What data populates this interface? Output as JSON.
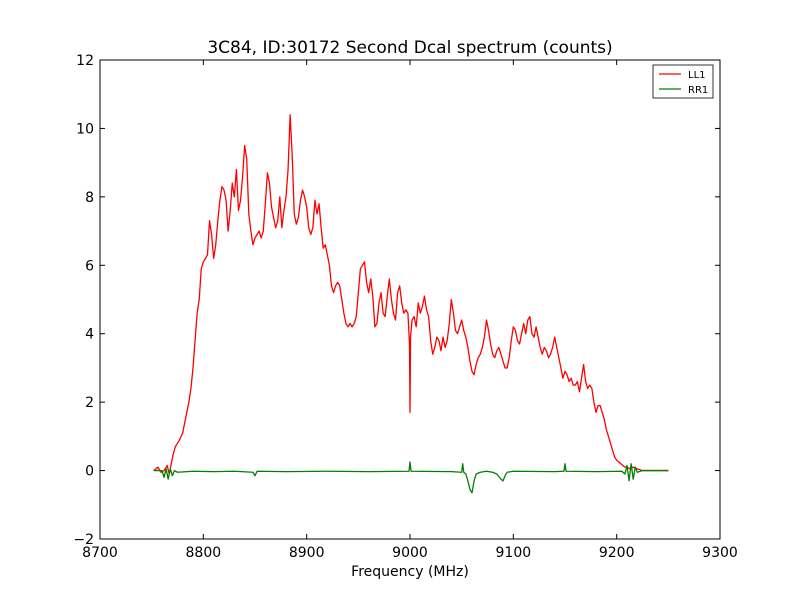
{
  "chart_data": {
    "type": "line",
    "title": "3C84, ID:30172 Second Dcal spectrum (counts)",
    "xlabel": "Frequency (MHz)",
    "ylabel": "",
    "xlim": [
      8700,
      9300
    ],
    "ylim": [
      -2,
      12
    ],
    "xticks": [
      8700,
      8800,
      8900,
      9000,
      9100,
      9200,
      9300
    ],
    "yticks": [
      -2,
      0,
      2,
      4,
      6,
      8,
      10,
      12
    ],
    "xtick_labels": [
      "8700",
      "8800",
      "8900",
      "9000",
      "9100",
      "9200",
      "9300"
    ],
    "ytick_labels": [
      "−2",
      "0",
      "2",
      "4",
      "6",
      "8",
      "10",
      "12"
    ],
    "grid": false,
    "legend_position": "top-right",
    "series": [
      {
        "name": "LL1",
        "color": "#ff0000",
        "points": [
          [
            8752,
            0.0
          ],
          [
            8756,
            0.1
          ],
          [
            8759,
            -0.05
          ],
          [
            8762,
            0.0
          ],
          [
            8765,
            0.15
          ],
          [
            8767,
            -0.1
          ],
          [
            8769,
            0.2
          ],
          [
            8771,
            0.5
          ],
          [
            8773,
            0.7
          ],
          [
            8775,
            0.8
          ],
          [
            8777,
            0.9
          ],
          [
            8780,
            1.1
          ],
          [
            8782,
            1.4
          ],
          [
            8784,
            1.7
          ],
          [
            8786,
            2.0
          ],
          [
            8788,
            2.4
          ],
          [
            8790,
            3.0
          ],
          [
            8792,
            3.8
          ],
          [
            8794,
            4.6
          ],
          [
            8796,
            5.0
          ],
          [
            8798,
            5.9
          ],
          [
            8800,
            6.1
          ],
          [
            8802,
            6.2
          ],
          [
            8804,
            6.3
          ],
          [
            8806,
            7.3
          ],
          [
            8808,
            6.9
          ],
          [
            8810,
            6.2
          ],
          [
            8812,
            6.6
          ],
          [
            8814,
            7.3
          ],
          [
            8816,
            7.9
          ],
          [
            8818,
            8.3
          ],
          [
            8820,
            8.2
          ],
          [
            8822,
            7.9
          ],
          [
            8824,
            7.0
          ],
          [
            8826,
            7.6
          ],
          [
            8828,
            8.4
          ],
          [
            8830,
            8.0
          ],
          [
            8832,
            8.8
          ],
          [
            8834,
            7.6
          ],
          [
            8836,
            7.9
          ],
          [
            8838,
            8.6
          ],
          [
            8840,
            9.5
          ],
          [
            8842,
            9.1
          ],
          [
            8844,
            7.5
          ],
          [
            8846,
            7.0
          ],
          [
            8848,
            6.6
          ],
          [
            8850,
            6.8
          ],
          [
            8852,
            6.9
          ],
          [
            8854,
            7.0
          ],
          [
            8856,
            6.8
          ],
          [
            8858,
            7.0
          ],
          [
            8860,
            7.8
          ],
          [
            8862,
            8.7
          ],
          [
            8864,
            8.4
          ],
          [
            8866,
            7.7
          ],
          [
            8868,
            7.4
          ],
          [
            8870,
            7.1
          ],
          [
            8872,
            7.3
          ],
          [
            8874,
            8.0
          ],
          [
            8876,
            7.1
          ],
          [
            8878,
            7.6
          ],
          [
            8880,
            8.0
          ],
          [
            8882,
            8.8
          ],
          [
            8884,
            10.4
          ],
          [
            8886,
            9.2
          ],
          [
            8888,
            7.5
          ],
          [
            8890,
            7.2
          ],
          [
            8892,
            7.4
          ],
          [
            8894,
            7.9
          ],
          [
            8896,
            8.2
          ],
          [
            8898,
            8.0
          ],
          [
            8900,
            7.7
          ],
          [
            8902,
            7.1
          ],
          [
            8904,
            6.9
          ],
          [
            8906,
            7.1
          ],
          [
            8908,
            7.9
          ],
          [
            8910,
            7.5
          ],
          [
            8912,
            7.8
          ],
          [
            8914,
            7.1
          ],
          [
            8916,
            6.5
          ],
          [
            8918,
            6.6
          ],
          [
            8920,
            6.3
          ],
          [
            8922,
            6.0
          ],
          [
            8924,
            5.4
          ],
          [
            8926,
            5.2
          ],
          [
            8928,
            5.4
          ],
          [
            8930,
            5.5
          ],
          [
            8932,
            5.4
          ],
          [
            8934,
            5.0
          ],
          [
            8936,
            4.6
          ],
          [
            8938,
            4.3
          ],
          [
            8940,
            4.2
          ],
          [
            8942,
            4.3
          ],
          [
            8944,
            4.2
          ],
          [
            8946,
            4.3
          ],
          [
            8948,
            4.5
          ],
          [
            8950,
            5.2
          ],
          [
            8952,
            5.9
          ],
          [
            8954,
            6.0
          ],
          [
            8956,
            6.1
          ],
          [
            8958,
            5.5
          ],
          [
            8960,
            5.2
          ],
          [
            8962,
            5.6
          ],
          [
            8964,
            5.1
          ],
          [
            8966,
            4.2
          ],
          [
            8968,
            4.3
          ],
          [
            8970,
            4.9
          ],
          [
            8972,
            5.2
          ],
          [
            8974,
            4.6
          ],
          [
            8976,
            4.5
          ],
          [
            8978,
            5.1
          ],
          [
            8980,
            5.6
          ],
          [
            8982,
            5.0
          ],
          [
            8984,
            4.6
          ],
          [
            8986,
            4.4
          ],
          [
            8988,
            5.2
          ],
          [
            8990,
            5.4
          ],
          [
            8992,
            4.9
          ],
          [
            8994,
            4.6
          ],
          [
            8996,
            4.7
          ],
          [
            8998,
            4.6
          ],
          [
            8999.5,
            3.7
          ],
          [
            9000,
            1.7
          ],
          [
            9000.5,
            3.9
          ],
          [
            9002,
            4.4
          ],
          [
            9004,
            4.5
          ],
          [
            9006,
            4.2
          ],
          [
            9008,
            4.9
          ],
          [
            9010,
            4.6
          ],
          [
            9012,
            4.8
          ],
          [
            9014,
            5.1
          ],
          [
            9016,
            4.7
          ],
          [
            9018,
            4.5
          ],
          [
            9020,
            3.8
          ],
          [
            9022,
            3.4
          ],
          [
            9024,
            3.6
          ],
          [
            9026,
            3.9
          ],
          [
            9028,
            3.8
          ],
          [
            9030,
            3.5
          ],
          [
            9032,
            3.9
          ],
          [
            9034,
            3.6
          ],
          [
            9036,
            3.8
          ],
          [
            9038,
            4.3
          ],
          [
            9040,
            5.0
          ],
          [
            9042,
            4.6
          ],
          [
            9044,
            4.1
          ],
          [
            9046,
            4.0
          ],
          [
            9048,
            4.2
          ],
          [
            9050,
            4.4
          ],
          [
            9052,
            4.1
          ],
          [
            9054,
            3.9
          ],
          [
            9056,
            3.6
          ],
          [
            9058,
            3.2
          ],
          [
            9060,
            2.9
          ],
          [
            9062,
            2.8
          ],
          [
            9064,
            3.1
          ],
          [
            9066,
            3.3
          ],
          [
            9068,
            3.4
          ],
          [
            9070,
            3.6
          ],
          [
            9072,
            3.9
          ],
          [
            9074,
            4.4
          ],
          [
            9076,
            4.1
          ],
          [
            9078,
            3.7
          ],
          [
            9080,
            3.4
          ],
          [
            9082,
            3.3
          ],
          [
            9084,
            3.5
          ],
          [
            9086,
            3.6
          ],
          [
            9088,
            3.4
          ],
          [
            9090,
            3.2
          ],
          [
            9092,
            3.0
          ],
          [
            9094,
            3.0
          ],
          [
            9096,
            3.3
          ],
          [
            9098,
            3.8
          ],
          [
            9100,
            4.2
          ],
          [
            9102,
            4.1
          ],
          [
            9104,
            3.8
          ],
          [
            9106,
            3.7
          ],
          [
            9108,
            4.0
          ],
          [
            9110,
            4.3
          ],
          [
            9112,
            4.0
          ],
          [
            9114,
            4.4
          ],
          [
            9116,
            4.5
          ],
          [
            9118,
            4.0
          ],
          [
            9120,
            3.9
          ],
          [
            9122,
            4.2
          ],
          [
            9124,
            3.9
          ],
          [
            9126,
            3.6
          ],
          [
            9128,
            3.4
          ],
          [
            9130,
            3.6
          ],
          [
            9132,
            3.5
          ],
          [
            9134,
            3.3
          ],
          [
            9136,
            3.4
          ],
          [
            9138,
            3.6
          ],
          [
            9140,
            3.9
          ],
          [
            9142,
            3.6
          ],
          [
            9144,
            3.3
          ],
          [
            9146,
            3.0
          ],
          [
            9148,
            2.7
          ],
          [
            9150,
            2.9
          ],
          [
            9152,
            2.8
          ],
          [
            9154,
            2.6
          ],
          [
            9156,
            2.7
          ],
          [
            9158,
            2.5
          ],
          [
            9160,
            2.5
          ],
          [
            9162,
            2.6
          ],
          [
            9164,
            2.3
          ],
          [
            9166,
            2.7
          ],
          [
            9168,
            3.1
          ],
          [
            9170,
            2.6
          ],
          [
            9172,
            2.4
          ],
          [
            9174,
            2.5
          ],
          [
            9176,
            2.4
          ],
          [
            9178,
            2.0
          ],
          [
            9180,
            1.7
          ],
          [
            9182,
            1.9
          ],
          [
            9184,
            1.9
          ],
          [
            9186,
            1.7
          ],
          [
            9188,
            1.5
          ],
          [
            9190,
            1.2
          ],
          [
            9192,
            1.0
          ],
          [
            9194,
            0.8
          ],
          [
            9196,
            0.6
          ],
          [
            9198,
            0.4
          ],
          [
            9200,
            0.3
          ],
          [
            9202,
            0.25
          ],
          [
            9204,
            0.2
          ],
          [
            9206,
            0.15
          ],
          [
            9208,
            0.1
          ],
          [
            9210,
            0.1
          ],
          [
            9213,
            0.05
          ],
          [
            9216,
            0.1
          ],
          [
            9220,
            0.05
          ],
          [
            9225,
            0.0
          ],
          [
            9235,
            0.0
          ],
          [
            9250,
            0.0
          ]
        ]
      },
      {
        "name": "RR1",
        "color": "#008000",
        "points": [
          [
            8752,
            0.0
          ],
          [
            8760,
            0.0
          ],
          [
            8762,
            -0.2
          ],
          [
            8764,
            0.05
          ],
          [
            8766,
            -0.25
          ],
          [
            8768,
            0.05
          ],
          [
            8770,
            -0.15
          ],
          [
            8772,
            0.0
          ],
          [
            8775,
            -0.05
          ],
          [
            8790,
            -0.02
          ],
          [
            8810,
            -0.03
          ],
          [
            8830,
            -0.02
          ],
          [
            8848,
            -0.05
          ],
          [
            8850,
            -0.15
          ],
          [
            8852,
            -0.02
          ],
          [
            8880,
            -0.03
          ],
          [
            8920,
            -0.02
          ],
          [
            8960,
            -0.03
          ],
          [
            8999,
            -0.02
          ],
          [
            9000,
            0.25
          ],
          [
            9001,
            -0.02
          ],
          [
            9040,
            -0.03
          ],
          [
            9050,
            -0.05
          ],
          [
            9051,
            0.2
          ],
          [
            9052,
            -0.05
          ],
          [
            9054,
            -0.1
          ],
          [
            9056,
            -0.3
          ],
          [
            9058,
            -0.55
          ],
          [
            9060,
            -0.65
          ],
          [
            9062,
            -0.3
          ],
          [
            9064,
            -0.1
          ],
          [
            9068,
            -0.05
          ],
          [
            9074,
            -0.02
          ],
          [
            9080,
            -0.05
          ],
          [
            9084,
            -0.1
          ],
          [
            9088,
            -0.25
          ],
          [
            9090,
            -0.3
          ],
          [
            9092,
            -0.15
          ],
          [
            9094,
            -0.05
          ],
          [
            9100,
            -0.02
          ],
          [
            9140,
            -0.03
          ],
          [
            9149,
            -0.02
          ],
          [
            9150,
            0.2
          ],
          [
            9151,
            -0.02
          ],
          [
            9180,
            -0.03
          ],
          [
            9205,
            -0.02
          ],
          [
            9208,
            -0.1
          ],
          [
            9210,
            0.15
          ],
          [
            9212,
            -0.3
          ],
          [
            9214,
            0.2
          ],
          [
            9216,
            -0.25
          ],
          [
            9218,
            0.1
          ],
          [
            9220,
            -0.05
          ],
          [
            9225,
            0.0
          ],
          [
            9250,
            0.0
          ]
        ]
      }
    ]
  }
}
